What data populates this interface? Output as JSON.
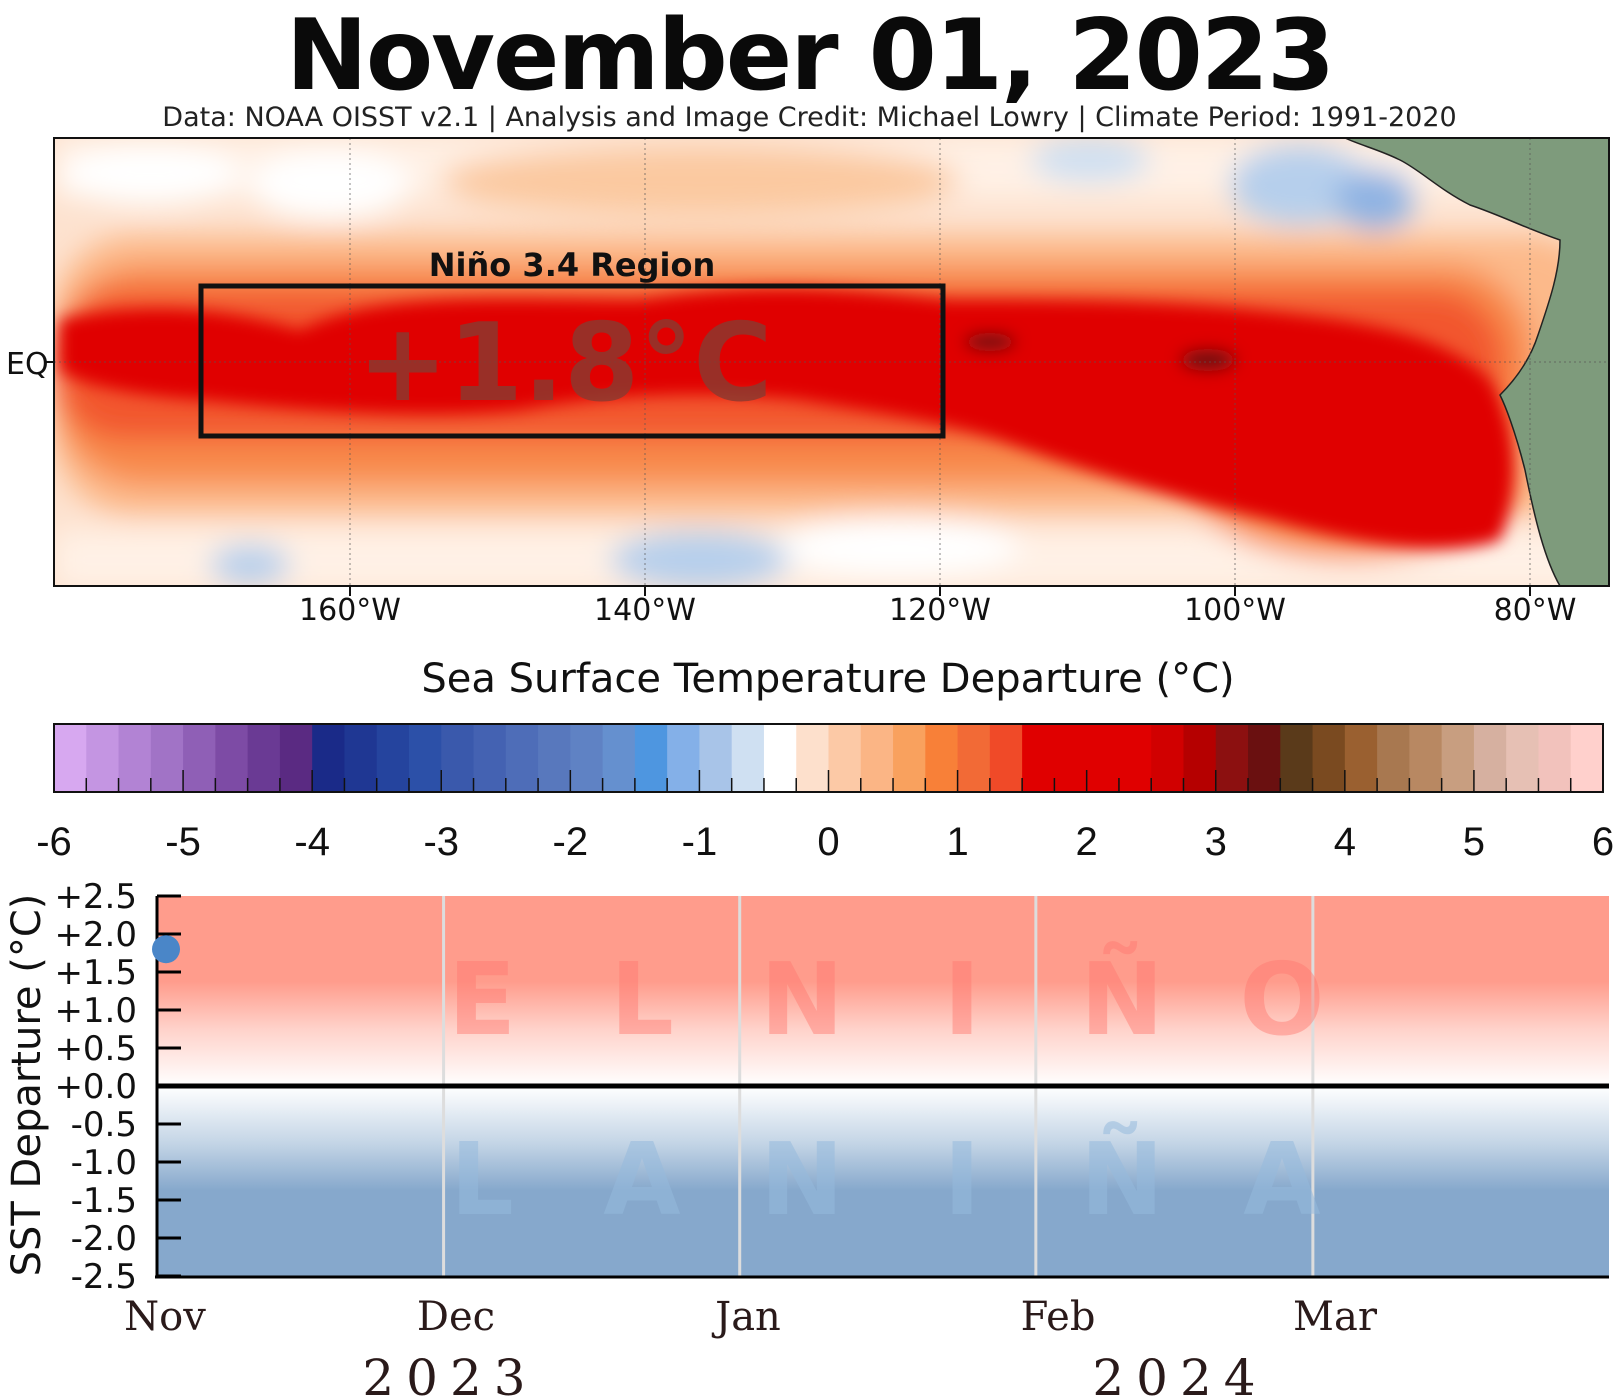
{
  "header": {
    "title": "November 01, 2023",
    "credit": "Data: NOAA OISST v2.1  |  Analysis and Image Credit: Michael Lowry  |  Climate Period: 1991-2020"
  },
  "map": {
    "region_label": "Niño 3.4 Region",
    "region_value": "+1.8°C",
    "eq_label": "EQ",
    "lon_labels": [
      "160°W",
      "140°W",
      "120°W",
      "100°W",
      "80°W"
    ]
  },
  "colorbar": {
    "title": "Sea Surface Temperature Departure (°C)",
    "tick_labels": [
      "-6",
      "-5",
      "-4",
      "-3",
      "-2",
      "-1",
      "0",
      "1",
      "2",
      "3",
      "4",
      "5",
      "6"
    ],
    "colors": [
      "#d7a8f0",
      "#c495e2",
      "#b283d4",
      "#a173c6",
      "#8f5fb6",
      "#7d4ba5",
      "#6a3a94",
      "#5a2a82",
      "#1a2a88",
      "#1f3793",
      "#25449e",
      "#2c50a8",
      "#3a59ac",
      "#4462b2",
      "#4e6db8",
      "#5878bd",
      "#5f82c4",
      "#6590cf",
      "#4e96e0",
      "#84b0e8",
      "#a8c4e8",
      "#cfe0f2",
      "#ffffff",
      "#fde0cc",
      "#fcc9a6",
      "#fbb585",
      "#f9a15e",
      "#f88038",
      "#f26a36",
      "#f04a28",
      "#e00000",
      "#e00000",
      "#e00000",
      "#e00000",
      "#d10000",
      "#b50000",
      "#8c1010",
      "#6a1010",
      "#5a3a1a",
      "#7a4a20",
      "#9a6030",
      "#a87850",
      "#b88862",
      "#c89e80",
      "#d6b0a0",
      "#e6c0b4",
      "#f2c2bc",
      "#ffd0cc"
    ]
  },
  "chart_data": {
    "type": "scatter",
    "ylabel": "SST Departure (°C)",
    "ylim": [
      -2.5,
      2.5
    ],
    "y_ticks": [
      "+2.5",
      "+2.0",
      "+1.5",
      "+1.0",
      "+0.5",
      "+0.0",
      "-0.5",
      "-1.0",
      "-1.5",
      "-2.0",
      "-2.5"
    ],
    "x_months": [
      "Nov",
      "Dec",
      "Jan",
      "Feb",
      "Mar"
    ],
    "x_years": [
      "2023",
      "2024"
    ],
    "el_nino_letters": [
      "E",
      "L",
      "N",
      "I",
      "Ñ",
      "O"
    ],
    "la_nina_letters": [
      "L",
      "A",
      "N",
      "I",
      "Ñ",
      "A"
    ],
    "series": [
      {
        "points": [
          {
            "x": "2023-11-01",
            "y": 1.8
          }
        ],
        "color": "#4a86c8"
      }
    ],
    "colors": {
      "el_nino_band": "#ff9c8c",
      "la_nina_band": "#86a8cc",
      "zero_line": "#000000"
    }
  }
}
